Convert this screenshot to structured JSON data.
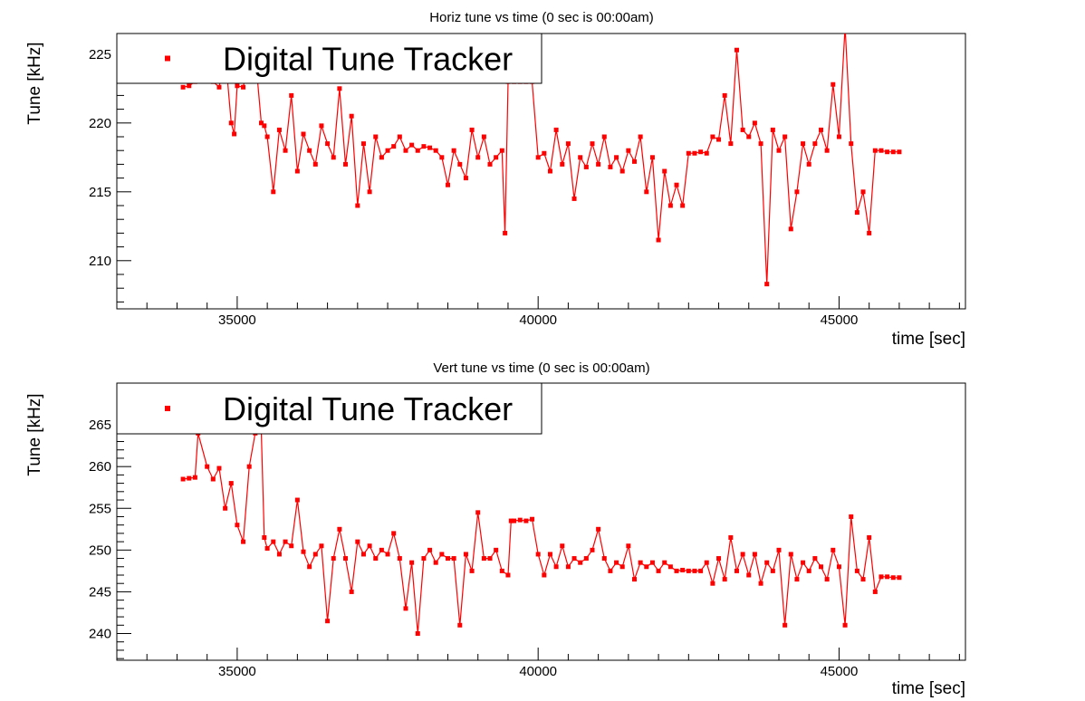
{
  "chart_data": [
    {
      "type": "scatter",
      "title": "Horiz tune vs time (0 sec is 00:00am)",
      "xlabel": "time [sec]",
      "ylabel": "Tune [kHz]",
      "xlim": [
        33000,
        47100
      ],
      "ylim": [
        206.5,
        226.5
      ],
      "xticks": [
        35000,
        40000,
        45000
      ],
      "yticks": [
        210,
        215,
        220,
        225
      ],
      "legend": {
        "position": "top-left",
        "entries": [
          "Digital Tune Tracker"
        ]
      },
      "series": [
        {
          "name": "Digital Tune Tracker",
          "color": "#ff0000",
          "marker": "square",
          "x": [
            34100,
            34200,
            34300,
            34350,
            34400,
            34500,
            34600,
            34700,
            34800,
            34900,
            34950,
            35000,
            35100,
            35200,
            35300,
            35400,
            35450,
            35500,
            35600,
            35700,
            35800,
            35900,
            36000,
            36100,
            36200,
            36300,
            36400,
            36500,
            36600,
            36700,
            36800,
            36900,
            37000,
            37100,
            37200,
            37300,
            37400,
            37500,
            37600,
            37700,
            37800,
            37900,
            38000,
            38100,
            38200,
            38300,
            38400,
            38500,
            38600,
            38700,
            38800,
            38900,
            39000,
            39100,
            39200,
            39300,
            39400,
            39450,
            39500,
            39600,
            39700,
            39800,
            39900,
            40000,
            40100,
            40200,
            40300,
            40400,
            40500,
            40600,
            40700,
            40800,
            40900,
            41000,
            41100,
            41200,
            41300,
            41400,
            41500,
            41600,
            41700,
            41800,
            41900,
            42000,
            42100,
            42200,
            42300,
            42400,
            42500,
            42600,
            42700,
            42800,
            42900,
            43000,
            43100,
            43200,
            43300,
            43400,
            43500,
            43600,
            43700,
            43800,
            43900,
            44000,
            44100,
            44200,
            44300,
            44400,
            44500,
            44600,
            44700,
            44800,
            44900,
            45000,
            45100,
            45200,
            45300,
            45400,
            45500,
            45600,
            45700,
            45800,
            45900,
            46000
          ],
          "y": [
            222.6,
            222.7,
            223.0,
            224.8,
            225.0,
            224.0,
            223.0,
            222.6,
            225.1,
            220.0,
            219.2,
            222.7,
            222.6,
            225.1,
            225.0,
            220.0,
            219.8,
            219.0,
            215.0,
            219.5,
            218.0,
            222.0,
            216.5,
            219.2,
            218.0,
            217.0,
            219.8,
            218.5,
            217.5,
            222.5,
            217.0,
            220.5,
            214.0,
            218.5,
            215.0,
            219.0,
            217.5,
            218.0,
            218.3,
            219.0,
            218.0,
            218.4,
            218.0,
            218.3,
            218.2,
            218.0,
            217.5,
            215.5,
            218.0,
            217.0,
            216.0,
            219.5,
            217.5,
            219.0,
            217.0,
            217.5,
            218.0,
            212.0,
            223.0,
            223.0,
            223.0,
            223.0,
            223.0,
            217.5,
            217.8,
            216.5,
            219.5,
            217.0,
            218.5,
            214.5,
            217.5,
            216.8,
            218.5,
            217.0,
            219.0,
            216.8,
            217.5,
            216.5,
            218.0,
            217.2,
            219.0,
            215.0,
            217.5,
            211.5,
            216.5,
            214.0,
            215.5,
            214.0,
            217.8,
            217.8,
            217.9,
            217.8,
            219.0,
            218.8,
            222.0,
            218.5,
            225.3,
            219.5,
            219.0,
            220.0,
            218.5,
            208.3,
            219.5,
            218.0,
            219.0,
            212.3,
            215.0,
            218.5,
            217.0,
            218.5,
            219.5,
            218.0,
            222.8,
            219.0,
            227.0,
            218.5,
            213.5,
            215.0,
            212.0,
            218.0,
            218.0,
            217.9,
            217.9,
            217.9
          ]
        }
      ]
    },
    {
      "type": "scatter",
      "title": "Vert tune vs time (0 sec is 00:00am)",
      "xlabel": "time [sec]",
      "ylabel": "Tune [kHz]",
      "xlim": [
        33000,
        47100
      ],
      "ylim": [
        236.8,
        270.0
      ],
      "xticks": [
        35000,
        40000,
        45000
      ],
      "yticks": [
        240,
        245,
        250,
        255,
        260,
        265
      ],
      "legend": {
        "position": "top-left",
        "entries": [
          "Digital Tune Tracker"
        ]
      },
      "series": [
        {
          "name": "Digital Tune Tracker",
          "color": "#ff0000",
          "marker": "square",
          "x": [
            34100,
            34200,
            34300,
            34350,
            34500,
            34600,
            34700,
            34800,
            34900,
            35000,
            35100,
            35200,
            35300,
            35400,
            35450,
            35500,
            35600,
            35700,
            35800,
            35900,
            36000,
            36100,
            36200,
            36300,
            36400,
            36500,
            36600,
            36700,
            36800,
            36900,
            37000,
            37100,
            37200,
            37300,
            37400,
            37500,
            37600,
            37700,
            37800,
            37900,
            38000,
            38100,
            38200,
            38300,
            38400,
            38500,
            38600,
            38700,
            38800,
            38900,
            39000,
            39100,
            39200,
            39300,
            39400,
            39500,
            39550,
            39600,
            39700,
            39800,
            39900,
            40000,
            40100,
            40200,
            40300,
            40400,
            40500,
            40600,
            40700,
            40800,
            40900,
            41000,
            41100,
            41200,
            41300,
            41400,
            41500,
            41600,
            41700,
            41800,
            41900,
            42000,
            42100,
            42200,
            42300,
            42400,
            42500,
            42600,
            42700,
            42800,
            42900,
            43000,
            43100,
            43200,
            43300,
            43400,
            43500,
            43600,
            43700,
            43800,
            43900,
            44000,
            44100,
            44200,
            44300,
            44400,
            44500,
            44600,
            44700,
            44800,
            44900,
            45000,
            45100,
            45200,
            45300,
            45400,
            45500,
            45600,
            45700,
            45800,
            45900,
            46000
          ],
          "y": [
            258.5,
            258.6,
            258.7,
            264.0,
            260.0,
            258.5,
            259.8,
            255.0,
            258.0,
            253.0,
            251.0,
            260.0,
            264.0,
            264.2,
            251.5,
            250.2,
            251.0,
            249.5,
            251.0,
            250.5,
            256.0,
            249.8,
            248.0,
            249.5,
            250.5,
            241.5,
            249.0,
            252.5,
            249.0,
            245.0,
            251.0,
            249.5,
            250.5,
            249.0,
            250.0,
            249.5,
            252.0,
            249.0,
            243.0,
            248.5,
            240.0,
            249.0,
            250.0,
            248.5,
            249.5,
            249.0,
            249.0,
            241.0,
            249.5,
            247.5,
            254.5,
            249.0,
            249.0,
            250.0,
            247.5,
            247.0,
            253.5,
            253.5,
            253.6,
            253.5,
            253.7,
            249.5,
            247.0,
            249.5,
            248.0,
            250.5,
            248.0,
            249.0,
            248.5,
            249.0,
            250.0,
            252.5,
            249.0,
            247.5,
            248.5,
            248.0,
            250.5,
            246.5,
            248.5,
            248.0,
            248.5,
            247.5,
            248.5,
            248.0,
            247.5,
            247.6,
            247.5,
            247.5,
            247.5,
            248.5,
            246.0,
            249.0,
            246.5,
            251.5,
            247.5,
            249.5,
            247.0,
            249.5,
            246.0,
            248.5,
            247.5,
            250.0,
            241.0,
            249.5,
            246.5,
            248.5,
            247.5,
            249.0,
            248.0,
            246.5,
            250.0,
            248.0,
            241.0,
            254.0,
            247.5,
            246.5,
            251.5,
            245.0,
            246.8,
            246.8,
            246.7,
            246.7
          ]
        }
      ]
    }
  ]
}
